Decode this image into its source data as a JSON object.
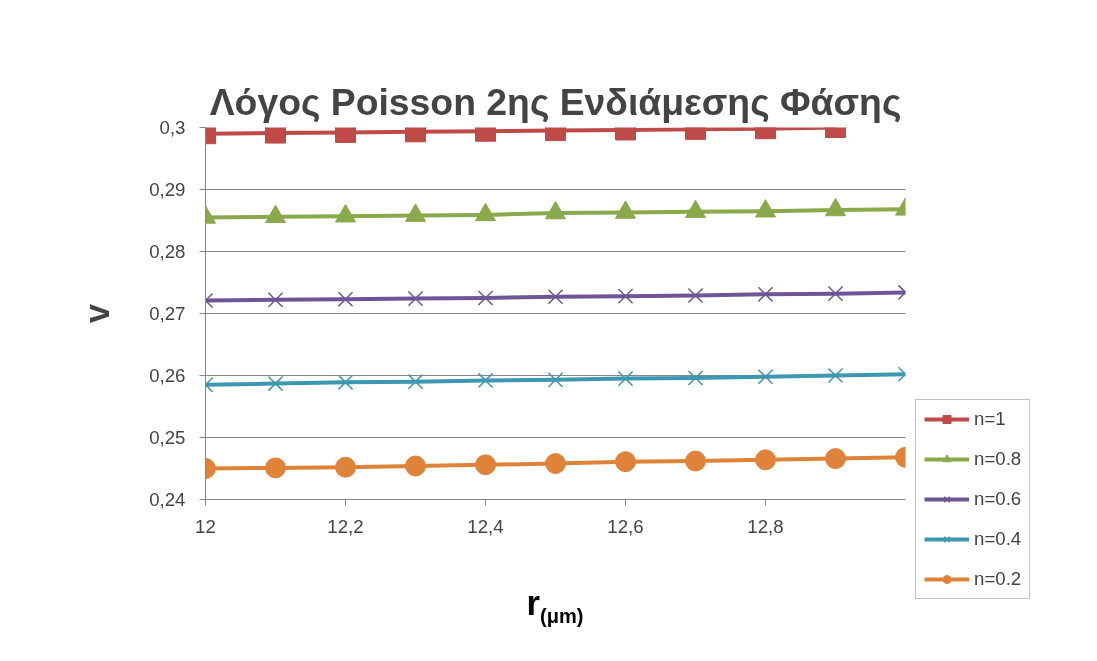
{
  "chart_data": {
    "type": "line",
    "title": "Λόγος Poisson 2ης Ενδιάμεσης Φάσης",
    "xlabel": "r$_{(μm)}$",
    "ylabel": "v",
    "x": [
      12,
      12.1,
      12.2,
      12.3,
      12.4,
      12.5,
      12.6,
      12.7,
      12.8,
      12.9,
      13.0
    ],
    "xlim": [
      12,
      13.0
    ],
    "xticks": [
      {
        "value": 12,
        "label": "12"
      },
      {
        "value": 12.2,
        "label": "12,2"
      },
      {
        "value": 12.4,
        "label": "12,4"
      },
      {
        "value": 12.6,
        "label": "12,6"
      },
      {
        "value": 12.8,
        "label": "12,8"
      }
    ],
    "ylim": [
      0.24,
      0.3
    ],
    "yticks": [
      {
        "value": 0.24,
        "label": "0,24"
      },
      {
        "value": 0.25,
        "label": "0,25"
      },
      {
        "value": 0.26,
        "label": "0,26"
      },
      {
        "value": 0.27,
        "label": "0,27"
      },
      {
        "value": 0.28,
        "label": "0,28"
      },
      {
        "value": 0.29,
        "label": "0,29"
      },
      {
        "value": 0.3,
        "label": "0,3"
      }
    ],
    "grid": "y",
    "legend": "right",
    "line_style": "solid",
    "series": [
      {
        "name": "n=1",
        "color": "#be4b48",
        "marker": "square",
        "values": [
          0.299,
          0.2991,
          0.2992,
          0.2993,
          0.2994,
          0.2995,
          0.2996,
          0.2997,
          0.2998,
          0.3,
          null
        ]
      },
      {
        "name": "n=0.8",
        "color": "#8aa94a",
        "marker": "triangle",
        "values": [
          0.2855,
          0.2856,
          0.2857,
          0.2858,
          0.2859,
          0.2862,
          0.2863,
          0.2864,
          0.2865,
          0.2867,
          0.2868
        ]
      },
      {
        "name": "n=0.6",
        "color": "#6f5596",
        "marker": "cross",
        "values": [
          0.2721,
          0.2722,
          0.2723,
          0.2724,
          0.2725,
          0.2727,
          0.2728,
          0.2729,
          0.2731,
          0.2732,
          0.2734
        ]
      },
      {
        "name": "n=0.4",
        "color": "#3d97b0",
        "marker": "cross",
        "values": [
          0.2585,
          0.2587,
          0.2589,
          0.259,
          0.2592,
          0.2593,
          0.2595,
          0.2596,
          0.2598,
          0.26,
          0.2602
        ]
      },
      {
        "name": "n=0.2",
        "color": "#e0833a",
        "marker": "circle",
        "values": [
          0.245,
          0.2451,
          0.2452,
          0.2454,
          0.2456,
          0.2458,
          0.2461,
          0.2462,
          0.2464,
          0.2466,
          0.2468
        ]
      }
    ]
  }
}
